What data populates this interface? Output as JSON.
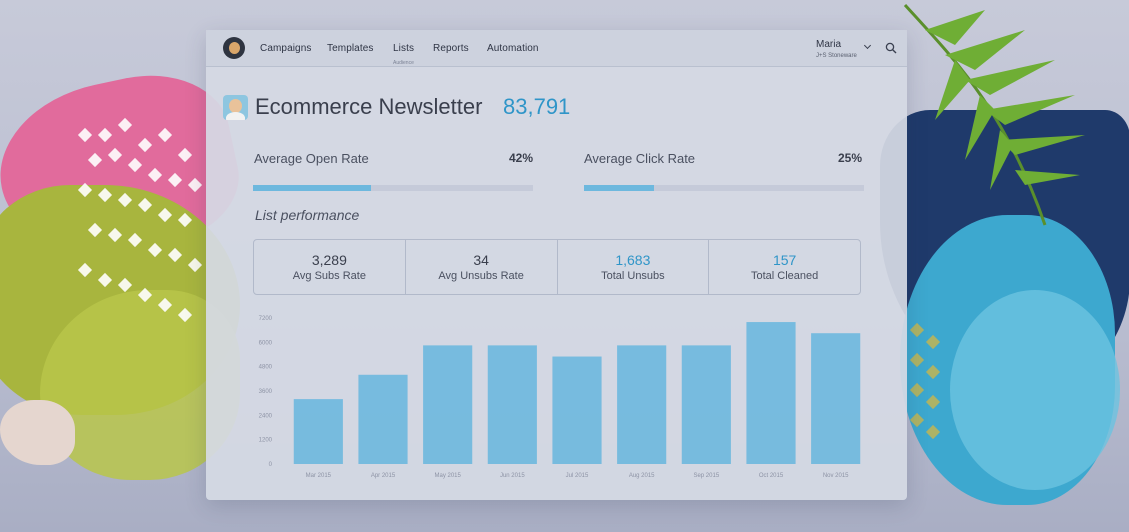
{
  "nav": {
    "items": [
      "Campaigns",
      "Templates",
      "Lists",
      "Reports",
      "Automation"
    ],
    "lists_sub": "Audience",
    "user_name": "Maria",
    "user_org": "J+S Stoneware"
  },
  "list": {
    "title": "Ecommerce Newsletter",
    "count": "83,791"
  },
  "rates": {
    "open_label": "Average Open Rate",
    "open_value": "42%",
    "open_fraction": 0.42,
    "click_label": "Average Click Rate",
    "click_value": "25%",
    "click_fraction": 0.25
  },
  "performance": {
    "title": "List performance",
    "stats": [
      {
        "value": "3,289",
        "label": "Avg Subs Rate"
      },
      {
        "value": "34",
        "label": "Avg Unsubs Rate"
      },
      {
        "value": "1,683",
        "label": "Total Unsubs"
      },
      {
        "value": "157",
        "label": "Total Cleaned"
      }
    ]
  },
  "colors": {
    "accent": "#2f95c8",
    "bar": "#6db8de"
  },
  "chart_data": {
    "type": "bar",
    "categories": [
      "Mar 2015",
      "Apr 2015",
      "May 2015",
      "Jun 2015",
      "Jul 2015",
      "Aug 2015",
      "Sep 2015",
      "Oct 2015",
      "Nov 2015"
    ],
    "values": [
      3200,
      4400,
      5850,
      5850,
      5300,
      5850,
      5850,
      7000,
      6450
    ],
    "yticks": [
      "0",
      "1200",
      "2400",
      "3600",
      "4800",
      "6000",
      "7200"
    ],
    "ylim": [
      0,
      7200
    ],
    "grid": false
  }
}
